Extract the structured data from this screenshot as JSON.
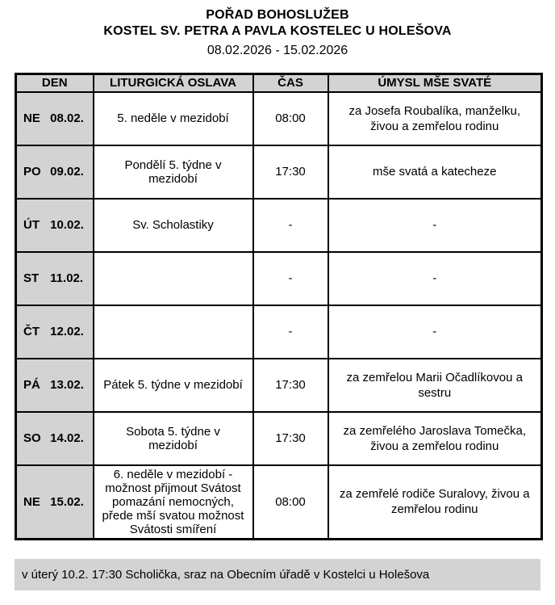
{
  "header": {
    "title": "POŘAD BOHOSLUŽEB",
    "subtitle": "KOSTEL SV. PETRA A PAVLA KOSTELEC U HOLEŠOVA",
    "date_range": "08.02.2026 - 15.02.2026"
  },
  "table": {
    "columns": [
      "DEN",
      "LITURGICKÁ OSLAVA",
      "ČAS",
      "ÚMYSL MŠE SVATÉ"
    ],
    "rows": [
      {
        "day": "NE",
        "date": "08.02.",
        "celebration": "5. neděle v mezidobí",
        "time": "08:00",
        "intention": "za Josefa Roubalíka, manželku, živou a zemřelou rodinu"
      },
      {
        "day": "PO",
        "date": "09.02.",
        "celebration": "Pondělí 5. týdne v mezidobí",
        "time": "17:30",
        "intention": "mše svatá a katecheze"
      },
      {
        "day": "ÚT",
        "date": "10.02.",
        "celebration": "Sv. Scholastiky",
        "time": "-",
        "intention": "-"
      },
      {
        "day": "ST",
        "date": "11.02.",
        "celebration": "",
        "time": "-",
        "intention": "-"
      },
      {
        "day": "ČT",
        "date": "12.02.",
        "celebration": "",
        "time": "-",
        "intention": "-"
      },
      {
        "day": "PÁ",
        "date": "13.02.",
        "celebration": "Pátek 5. týdne v mezidobí",
        "time": "17:30",
        "intention": "za zemřelou Marii Očadlíkovou a sestru"
      },
      {
        "day": "SO",
        "date": "14.02.",
        "celebration": "Sobota 5. týdne v mezidobí",
        "time": "17:30",
        "intention": "za zemřelého Jaroslava Tomečka, živou a zemřelou rodinu"
      },
      {
        "day": "NE",
        "date": "15.02.",
        "celebration": "6. neděle v mezidobí - možnost přijmout Svátost pomazání nemocných, přede mší svatou možnost Svátosti smíření",
        "time": "08:00",
        "intention": "za zemřelé rodiče Suralovy, živou a zemřelou rodinu"
      }
    ]
  },
  "footer": {
    "note": "v úterý 10.2. 17:30 Scholička, sraz na Obecním úřadě v Kostelci u Holešova"
  },
  "colors": {
    "cell_gray": "#d3d3d3",
    "border_black": "#000000",
    "page_background": "#ffffff"
  }
}
